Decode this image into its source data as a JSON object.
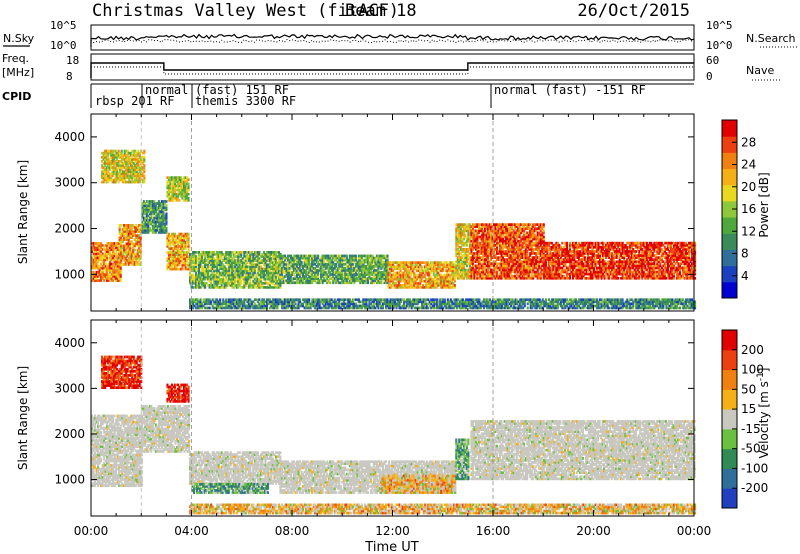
{
  "header": {
    "title": "Christmas Valley West (fitACF)",
    "beam": "Beam 18",
    "date": "26/Oct/2015"
  },
  "panels": {
    "nsky_label": "N.Sky",
    "nsearch_label": "N.Search",
    "noise_ticks_left": [
      "10^5",
      "10^0"
    ],
    "noise_ticks_right": [
      "10^5",
      "10^0"
    ],
    "freq_label_1": "Freq.",
    "freq_label_2": "[MHz]",
    "freq_ticks": [
      "18",
      "8"
    ],
    "nave_label": "Nave",
    "nave_ticks": [
      "60",
      "0"
    ],
    "cpid_label": "CPID",
    "cpid_segments": [
      {
        "text": "rbsp 201 RF",
        "start_hour": 0.0
      },
      {
        "text": "normal",
        "start_hour": 2.9
      },
      {
        "text": "(fast) 151 RF",
        "start_hour": 4.0
      },
      {
        "text": "themis 3300 RF",
        "start_hour": 4.0
      },
      {
        "text": "normal (fast) -151 RF",
        "start_hour": 15.95
      }
    ]
  },
  "chart_data": [
    {
      "type": "heatmap",
      "title": "",
      "xlabel": "Time UT",
      "ylabel": "Slant Range [km]",
      "xlim_hours": [
        0,
        24
      ],
      "ylim": [
        200,
        4500
      ],
      "x_tick_labels": [
        "00:00",
        "04:00",
        "08:00",
        "12:00",
        "16:00",
        "20:00",
        "00:00"
      ],
      "y_tick_labels": [
        "1000",
        "2000",
        "3000",
        "4000"
      ],
      "colorbar_label": "Power [dB]",
      "colorbar_ticks": [
        "28",
        "24",
        "20",
        "16",
        "12",
        "8",
        "4"
      ],
      "colorscale": [
        "#0000d0",
        "#1a40c0",
        "#2f6f9a",
        "#3a8a5a",
        "#4ea83c",
        "#8cc83a",
        "#e8d820",
        "#f5b018",
        "#f08010",
        "#ec4010",
        "#e00000"
      ],
      "regions": [
        {
          "t0": 0.0,
          "t1": 1.2,
          "r0": 850,
          "r1": 1700,
          "level": 0.75
        },
        {
          "t0": 1.1,
          "t1": 2.0,
          "r0": 1200,
          "r1": 2100,
          "level": 0.72
        },
        {
          "t0": 0.4,
          "t1": 2.1,
          "r0": 3000,
          "r1": 3700,
          "level": 0.6
        },
        {
          "t0": 2.0,
          "t1": 3.0,
          "r0": 1900,
          "r1": 2600,
          "level": 0.35
        },
        {
          "t0": 3.0,
          "t1": 3.9,
          "r0": 1100,
          "r1": 1900,
          "level": 0.7
        },
        {
          "t0": 3.0,
          "t1": 3.9,
          "r0": 2600,
          "r1": 3100,
          "level": 0.55
        },
        {
          "t0": 3.9,
          "t1": 7.5,
          "r0": 700,
          "r1": 1500,
          "level": 0.45
        },
        {
          "t0": 7.5,
          "t1": 11.8,
          "r0": 800,
          "r1": 1400,
          "level": 0.4
        },
        {
          "t0": 11.8,
          "t1": 14.5,
          "r0": 700,
          "r1": 1250,
          "level": 0.7
        },
        {
          "t0": 14.5,
          "t1": 15.1,
          "r0": 900,
          "r1": 2100,
          "level": 0.6
        },
        {
          "t0": 15.1,
          "t1": 18.0,
          "r0": 900,
          "r1": 2100,
          "level": 0.85
        },
        {
          "t0": 18.0,
          "t1": 24.0,
          "r0": 900,
          "r1": 1700,
          "level": 0.9
        },
        {
          "t0": 3.9,
          "t1": 24.0,
          "r0": 250,
          "r1": 450,
          "level": 0.3
        }
      ]
    },
    {
      "type": "heatmap",
      "title": "",
      "xlabel": "Time UT",
      "ylabel": "Slant Range [km]",
      "xlim_hours": [
        0,
        24
      ],
      "ylim": [
        200,
        4500
      ],
      "x_tick_labels": [
        "00:00",
        "04:00",
        "08:00",
        "12:00",
        "16:00",
        "20:00",
        "00:00"
      ],
      "y_tick_labels": [
        "1000",
        "2000",
        "3000",
        "4000"
      ],
      "colorbar_label": "Velocity [m s^-1]",
      "colorbar_ticks": [
        "200",
        "100",
        "50",
        "15",
        "-15",
        "-50",
        "-100",
        "-200"
      ],
      "colorscale": [
        "#2040c0",
        "#2f6f9a",
        "#2f8a55",
        "#6cc040",
        "#c8c8c0",
        "#f5b018",
        "#f08010",
        "#ec4010",
        "#e00000"
      ],
      "regions": [
        {
          "t0": 0.0,
          "t1": 2.0,
          "r0": 850,
          "r1": 2400,
          "level": 0.5
        },
        {
          "t0": 0.4,
          "t1": 2.0,
          "r0": 3000,
          "r1": 3700,
          "level": 0.9
        },
        {
          "t0": 2.0,
          "t1": 3.9,
          "r0": 1600,
          "r1": 2600,
          "level": 0.5
        },
        {
          "t0": 3.0,
          "t1": 3.9,
          "r0": 2700,
          "r1": 3100,
          "level": 0.95
        },
        {
          "t0": 3.9,
          "t1": 7.5,
          "r0": 900,
          "r1": 1600,
          "level": 0.5
        },
        {
          "t0": 4.0,
          "t1": 7.0,
          "r0": 700,
          "r1": 900,
          "level": 0.35
        },
        {
          "t0": 7.5,
          "t1": 14.5,
          "r0": 700,
          "r1": 1400,
          "level": 0.5
        },
        {
          "t0": 11.5,
          "t1": 14.5,
          "r0": 700,
          "r1": 1100,
          "level": 0.6
        },
        {
          "t0": 14.5,
          "t1": 15.0,
          "r0": 1000,
          "r1": 1900,
          "level": 0.35
        },
        {
          "t0": 15.1,
          "t1": 24.0,
          "r0": 1000,
          "r1": 2300,
          "level": 0.5
        },
        {
          "t0": 3.9,
          "t1": 24.0,
          "r0": 250,
          "r1": 450,
          "level": 0.6
        }
      ]
    }
  ]
}
